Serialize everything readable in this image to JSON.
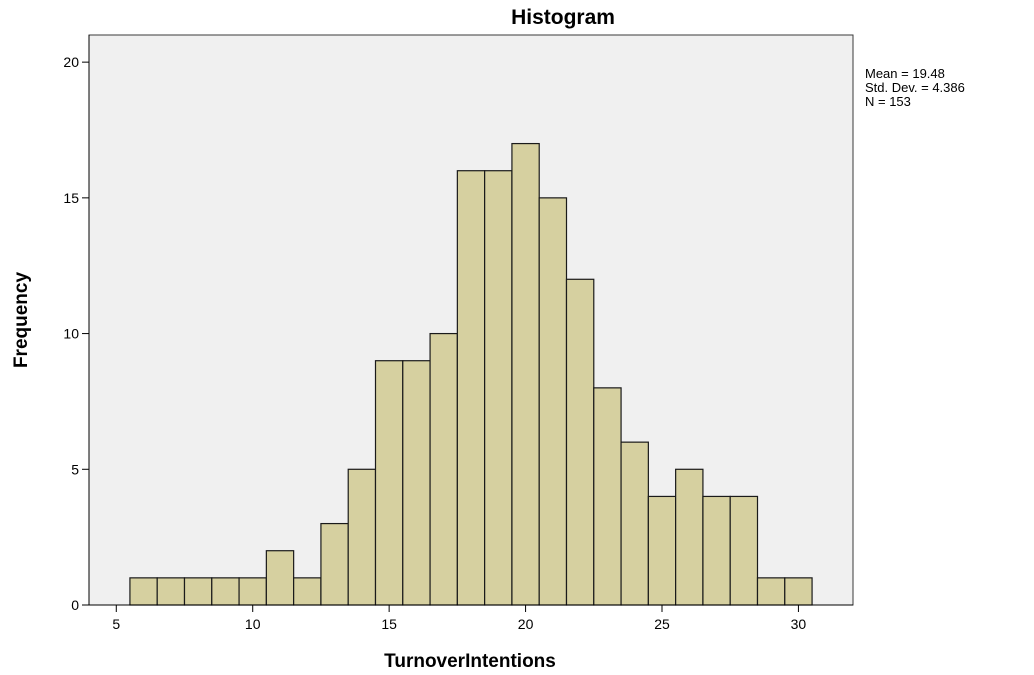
{
  "chart_data": {
    "type": "bar",
    "title": "Histogram",
    "xlabel": "TurnoverIntentions",
    "ylabel": "Frequency",
    "xlim": [
      4,
      32
    ],
    "ylim": [
      0,
      21
    ],
    "bin_width": 1,
    "x_ticks": [
      5,
      10,
      15,
      20,
      25,
      30
    ],
    "y_ticks": [
      0,
      5,
      10,
      15,
      20
    ],
    "bins": [
      {
        "x": 6,
        "value": 1
      },
      {
        "x": 7,
        "value": 1
      },
      {
        "x": 8,
        "value": 1
      },
      {
        "x": 9,
        "value": 1
      },
      {
        "x": 10,
        "value": 1
      },
      {
        "x": 11,
        "value": 2
      },
      {
        "x": 12,
        "value": 1
      },
      {
        "x": 13,
        "value": 3
      },
      {
        "x": 14,
        "value": 5
      },
      {
        "x": 15,
        "value": 9
      },
      {
        "x": 16,
        "value": 9
      },
      {
        "x": 17,
        "value": 10
      },
      {
        "x": 18,
        "value": 16
      },
      {
        "x": 19,
        "value": 16
      },
      {
        "x": 20,
        "value": 17
      },
      {
        "x": 21,
        "value": 15
      },
      {
        "x": 22,
        "value": 12
      },
      {
        "x": 23,
        "value": 8
      },
      {
        "x": 24,
        "value": 6
      },
      {
        "x": 25,
        "value": 4
      },
      {
        "x": 26,
        "value": 5
      },
      {
        "x": 27,
        "value": 4
      },
      {
        "x": 28,
        "value": 4
      },
      {
        "x": 29,
        "value": 1
      },
      {
        "x": 30,
        "value": 1
      }
    ],
    "stats": [
      "Mean = 19.48",
      "Std. Dev. = 4.386",
      "N = 153"
    ],
    "grid": false,
    "colors": {
      "bar_fill": "#d6d0a0",
      "bar_stroke": "#1a1a1a",
      "plot_background": "#f0f0f0",
      "frame": "#3a3a3a"
    }
  }
}
